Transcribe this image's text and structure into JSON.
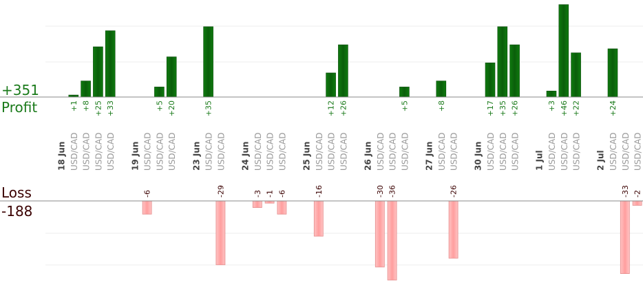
{
  "summary": {
    "profit_total": "+351",
    "profit_label": "Profit",
    "loss_label": "Loss",
    "loss_total": "-188"
  },
  "colors": {
    "profit_bar": "#0a6a0a",
    "profit_text": "#1a7a1a",
    "loss_bar": "#ffb3b3",
    "loss_border": "#e58a8a",
    "loss_text": "#3a0000",
    "axis": "#888888",
    "grid": "#e8e8e8",
    "instrument_text": "#999999",
    "date_text": "#444444"
  },
  "chart_data": {
    "type": "bar",
    "instrument": "USD/CAD",
    "groups": [
      {
        "date": "18 Jun",
        "trades": [
          1,
          8,
          25,
          33
        ]
      },
      {
        "date": "19 Jun",
        "trades": [
          -6,
          5,
          20
        ]
      },
      {
        "date": "23 Jun",
        "trades": [
          35,
          -29
        ]
      },
      {
        "date": "24 Jun",
        "trades": [
          -3,
          -1,
          -6
        ]
      },
      {
        "date": "25 Jun",
        "trades": [
          -16,
          12,
          26
        ]
      },
      {
        "date": "26 Jun",
        "trades": [
          -30,
          -36,
          5
        ]
      },
      {
        "date": "27 Jun",
        "trades": [
          8,
          -26
        ]
      },
      {
        "date": "30 Jun",
        "trades": [
          17,
          35,
          26
        ]
      },
      {
        "date": "1 Jul",
        "trades": [
          3,
          46,
          22
        ]
      },
      {
        "date": "2 Jul",
        "trades": [
          24,
          -33,
          -2
        ]
      }
    ]
  }
}
